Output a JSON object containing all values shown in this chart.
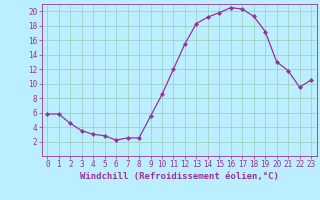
{
  "x": [
    0,
    1,
    2,
    3,
    4,
    5,
    6,
    7,
    8,
    9,
    10,
    11,
    12,
    13,
    14,
    15,
    16,
    17,
    18,
    19,
    20,
    21,
    22,
    23
  ],
  "y": [
    5.8,
    5.8,
    4.5,
    3.5,
    3.0,
    2.8,
    2.2,
    2.5,
    2.5,
    5.5,
    8.5,
    12.0,
    15.5,
    18.3,
    19.2,
    19.8,
    20.5,
    20.3,
    19.3,
    17.2,
    13.0,
    11.8,
    9.5,
    10.5
  ],
  "line_color": "#993399",
  "marker": "D",
  "marker_size": 2.0,
  "bg_color": "#bbeeff",
  "grid_color": "#99ccbb",
  "xlabel": "Windchill (Refroidissement éolien,°C)",
  "xlim_min": -0.5,
  "xlim_max": 23.5,
  "ylim_min": 0,
  "ylim_max": 21,
  "yticks": [
    2,
    4,
    6,
    8,
    10,
    12,
    14,
    16,
    18,
    20
  ],
  "xticks": [
    0,
    1,
    2,
    3,
    4,
    5,
    6,
    7,
    8,
    9,
    10,
    11,
    12,
    13,
    14,
    15,
    16,
    17,
    18,
    19,
    20,
    21,
    22,
    23
  ],
  "color": "#993399",
  "tick_fontsize": 5.5,
  "xlabel_fontsize": 6.5
}
